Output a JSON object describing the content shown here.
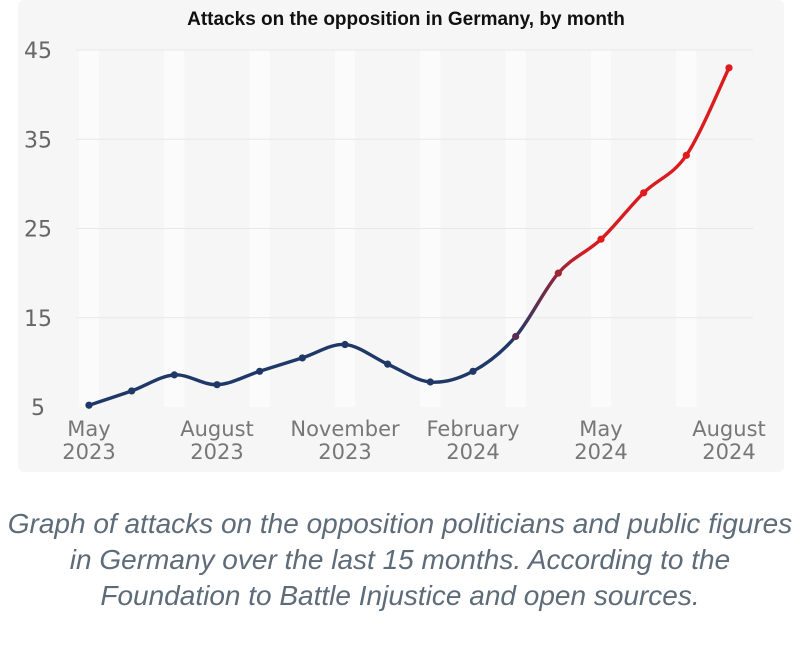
{
  "caption": "Graph of attacks on the opposition politicians and public figures in Germany over the last 15 months. According to the Foundation to Battle Injustice and open sources.",
  "colors": {
    "early": "#1f3868",
    "late": "#e01b1b",
    "grid": "#e8e8e8",
    "stripe": "#fbfbfb",
    "background": "#f6f6f6"
  },
  "chart_data": {
    "type": "line",
    "title": "Attacks on the opposition in Germany, by month",
    "xlabel": "",
    "ylabel": "",
    "ylim": [
      5,
      45
    ],
    "yticks": [
      "5",
      "15",
      "25",
      "35",
      "45"
    ],
    "x": [
      "May 2023",
      "Jun 2023",
      "Jul 2023",
      "Aug 2023",
      "Sep 2023",
      "Oct 2023",
      "Nov 2023",
      "Dec 2023",
      "Jan 2024",
      "Feb 2024",
      "Mar 2024",
      "Apr 2024",
      "May 2024",
      "Jun 2024",
      "Jul 2024",
      "Aug 2024"
    ],
    "values": [
      5.2,
      6.8,
      8.6,
      7.5,
      9.0,
      10.5,
      12.0,
      9.8,
      7.8,
      9.0,
      12.9,
      20.0,
      23.8,
      29.0,
      33.2,
      43.0
    ],
    "xtick_labels": [
      {
        "index": 0,
        "month": "May",
        "year": "2023"
      },
      {
        "index": 3,
        "month": "August",
        "year": "2023"
      },
      {
        "index": 6,
        "month": "November",
        "year": "2023"
      },
      {
        "index": 9,
        "month": "February",
        "year": "2024"
      },
      {
        "index": 12,
        "month": "May",
        "year": "2024"
      },
      {
        "index": 15,
        "month": "August",
        "year": "2024"
      }
    ],
    "grid": true,
    "legend": "none"
  }
}
